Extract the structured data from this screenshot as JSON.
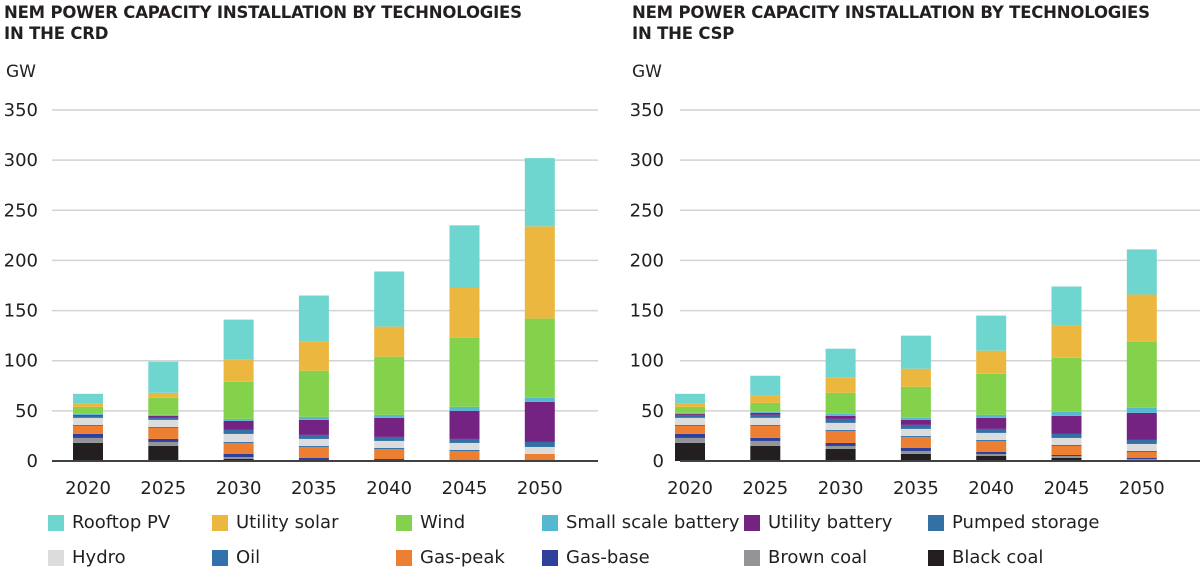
{
  "chart_data": [
    {
      "type": "bar",
      "stacked": true,
      "title": "NEM POWER CAPACITY INSTALLATION BY TECHNOLOGIES\nIN THE CRD",
      "ylabel": "GW",
      "xlabel": "",
      "ylim": [
        0,
        350
      ],
      "yticks": [
        0,
        50,
        100,
        150,
        200,
        250,
        300,
        350
      ],
      "grid": true,
      "categories": [
        "2020",
        "2025",
        "2030",
        "2035",
        "2040",
        "2045",
        "2050"
      ],
      "series": [
        {
          "name": "Black coal",
          "values": [
            18,
            15,
            2,
            1,
            0,
            0,
            0
          ]
        },
        {
          "name": "Brown coal",
          "values": [
            5,
            4,
            2,
            0,
            0,
            0,
            0
          ]
        },
        {
          "name": "Gas-base",
          "values": [
            4,
            3,
            3,
            2,
            2,
            1,
            1
          ]
        },
        {
          "name": "Gas-peak",
          "values": [
            8,
            11,
            11,
            11,
            10,
            9,
            6
          ]
        },
        {
          "name": "Oil",
          "values": [
            1,
            1,
            1,
            1,
            1,
            1,
            0
          ]
        },
        {
          "name": "Hydro",
          "values": [
            7,
            7,
            8,
            7,
            7,
            7,
            7
          ]
        },
        {
          "name": "Pumped storage",
          "values": [
            2,
            2,
            4,
            4,
            4,
            4,
            5
          ]
        },
        {
          "name": "Utility battery",
          "values": [
            1,
            2,
            9,
            15,
            19,
            28,
            40
          ]
        },
        {
          "name": "Small scale battery",
          "values": [
            1,
            1,
            2,
            3,
            3,
            4,
            4
          ]
        },
        {
          "name": "Wind",
          "values": [
            7,
            17,
            37,
            46,
            58,
            69,
            79
          ]
        },
        {
          "name": "Utility solar",
          "values": [
            3,
            5,
            22,
            29,
            30,
            50,
            92
          ]
        },
        {
          "name": "Rooftop PV",
          "values": [
            10,
            31,
            40,
            46,
            55,
            62,
            68
          ]
        }
      ]
    },
    {
      "type": "bar",
      "stacked": true,
      "title": "NEM POWER CAPACITY INSTALLATION BY TECHNOLOGIES\nIN THE CSP",
      "ylabel": "GW",
      "xlabel": "",
      "ylim": [
        0,
        350
      ],
      "yticks": [
        0,
        50,
        100,
        150,
        200,
        250,
        300,
        350
      ],
      "grid": true,
      "categories": [
        "2020",
        "2025",
        "2030",
        "2035",
        "2040",
        "2045",
        "2050"
      ],
      "series": [
        {
          "name": "Black coal",
          "values": [
            18,
            15,
            12,
            7,
            5,
            3,
            1
          ]
        },
        {
          "name": "Brown coal",
          "values": [
            5,
            5,
            3,
            3,
            2,
            2,
            1
          ]
        },
        {
          "name": "Gas-base",
          "values": [
            4,
            3,
            3,
            3,
            2,
            1,
            1
          ]
        },
        {
          "name": "Gas-peak",
          "values": [
            8,
            12,
            12,
            11,
            11,
            9,
            6
          ]
        },
        {
          "name": "Oil",
          "values": [
            1,
            1,
            1,
            1,
            1,
            1,
            1
          ]
        },
        {
          "name": "Hydro",
          "values": [
            7,
            7,
            7,
            7,
            7,
            7,
            7
          ]
        },
        {
          "name": "Pumped storage",
          "values": [
            3,
            3,
            4,
            4,
            4,
            4,
            4
          ]
        },
        {
          "name": "Utility battery",
          "values": [
            1,
            2,
            3,
            5,
            11,
            18,
            27
          ]
        },
        {
          "name": "Small scale battery",
          "values": [
            1,
            1,
            2,
            2,
            3,
            4,
            5
          ]
        },
        {
          "name": "Wind",
          "values": [
            6,
            9,
            21,
            31,
            41,
            54,
            66
          ]
        },
        {
          "name": "Utility solar",
          "values": [
            3,
            7,
            15,
            18,
            23,
            32,
            47
          ]
        },
        {
          "name": "Rooftop PV",
          "values": [
            10,
            20,
            29,
            33,
            35,
            39,
            45
          ]
        }
      ]
    }
  ],
  "legend": {
    "placement": "bottom",
    "items": [
      {
        "name": "Rooftop PV",
        "color": "#6fd6cf"
      },
      {
        "name": "Utility solar",
        "color": "#ebb73f"
      },
      {
        "name": "Wind",
        "color": "#84d24c"
      },
      {
        "name": "Small scale battery",
        "color": "#54b9d0"
      },
      {
        "name": "Utility battery",
        "color": "#752383"
      },
      {
        "name": "Pumped storage",
        "color": "#3270a6"
      },
      {
        "name": "Hydro",
        "color": "#dcdcdc"
      },
      {
        "name": "Oil",
        "color": "#3272ac"
      },
      {
        "name": "Gas-peak",
        "color": "#ec7f32"
      },
      {
        "name": "Gas-base",
        "color": "#2e3f9c"
      },
      {
        "name": "Brown coal",
        "color": "#929497"
      },
      {
        "name": "Black coal",
        "color": "#231f20"
      }
    ]
  }
}
